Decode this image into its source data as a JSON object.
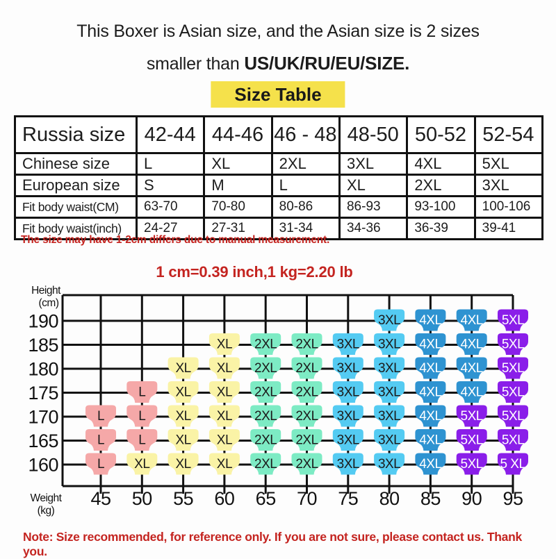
{
  "header": {
    "line1": "This Boxer is Asian size, and the Asian size is 2 sizes",
    "line2_regular": "smaller than ",
    "line2_bold": "US/UK/RU/EU/SIZE.",
    "badge": "Size Table",
    "badge_bg": "#F5E14B"
  },
  "size_table": {
    "rows": [
      {
        "label": "Russia size",
        "values": [
          "42-44",
          "44-46",
          "46 - 48",
          "48-50",
          "50-52",
          "52-54"
        ]
      },
      {
        "label": "Chinese size",
        "values": [
          "L",
          "XL",
          "2XL",
          "3XL",
          "4XL",
          "5XL"
        ]
      },
      {
        "label": "European size",
        "values": [
          "S",
          "M",
          "L",
          "XL",
          "2XL",
          "3XL"
        ]
      },
      {
        "label": "Fit body waist(CM)",
        "values": [
          "63-70",
          "70-80",
          "80-86",
          "86-93",
          "93-100",
          "100-106"
        ]
      },
      {
        "label": "Fit body waist(inch)",
        "values": [
          "24-27",
          "27-31",
          "31-34",
          "34-36",
          "36-39",
          "39-41"
        ]
      }
    ]
  },
  "notes": {
    "measure_note": "The size may have 1-2cm differs due to manual measurement.",
    "conversion_note": "1 cm=0.39 inch,1 kg=2.20 lb",
    "bottom_note": "Note: Size recommended, for reference only. If you are not sure, please contact us. Thank you.",
    "note_color": "#C42420"
  },
  "chart_data": {
    "type": "heatmap",
    "title": "",
    "xlabel": "Weight (kg)",
    "ylabel": "Height (cm)",
    "xlabel_lines": [
      "Weight",
      "(kg)"
    ],
    "ylabel_lines": [
      "Height",
      "(cm)"
    ],
    "x": [
      45,
      50,
      55,
      60,
      65,
      70,
      75,
      80,
      85,
      90,
      95
    ],
    "y": [
      190,
      185,
      180,
      175,
      170,
      165,
      160
    ],
    "grid": true,
    "axis_color": "#111111",
    "marker_shape": "briefs-icon",
    "matrix": [
      [
        null,
        null,
        null,
        null,
        null,
        null,
        null,
        "3XL",
        "4XL",
        "4XL",
        "5XL"
      ],
      [
        null,
        null,
        null,
        "XL",
        "2XL",
        "2XL",
        "3XL",
        "3XL",
        "4XL",
        "4XL",
        "5XL"
      ],
      [
        null,
        null,
        "XL",
        "XL",
        "2XL",
        "2XL",
        "3XL",
        "3XL",
        "4XL",
        "4XL",
        "5XL"
      ],
      [
        null,
        "L",
        "XL",
        "XL",
        "2XL",
        "2XL",
        "3XL",
        "3XL",
        "4XL",
        "4XL",
        "5XL"
      ],
      [
        "L",
        "L",
        "XL",
        "XL",
        "2XL",
        "2XL",
        "3XL",
        "3XL",
        "4XL",
        "5XL",
        "5XL"
      ],
      [
        "L",
        "L",
        "XL",
        "XL",
        "2XL",
        "2XL",
        "3XL",
        "3XL",
        "4XL",
        "5XL",
        "5XL"
      ],
      [
        "L",
        "XL",
        "XL",
        "XL",
        "2XL",
        "2XL",
        "3XL",
        "3XL",
        "4XL",
        "5XL",
        "5 XL"
      ]
    ],
    "marker_styles": {
      "L": {
        "bg": "#F5A8A8",
        "fg": "#1b1b1b"
      },
      "XL": {
        "bg": "#FAF3A6",
        "fg": "#1b1b1b"
      },
      "2XL": {
        "bg": "#7DEBC4",
        "fg": "#1b1b1b"
      },
      "3XL": {
        "bg": "#54CBF2",
        "fg": "#1b1b1b"
      },
      "4XL": {
        "bg": "#2E93D1",
        "fg": "#ffffff"
      },
      "5XL": {
        "bg": "#8A1EE9",
        "fg": "#ffffff"
      }
    }
  }
}
